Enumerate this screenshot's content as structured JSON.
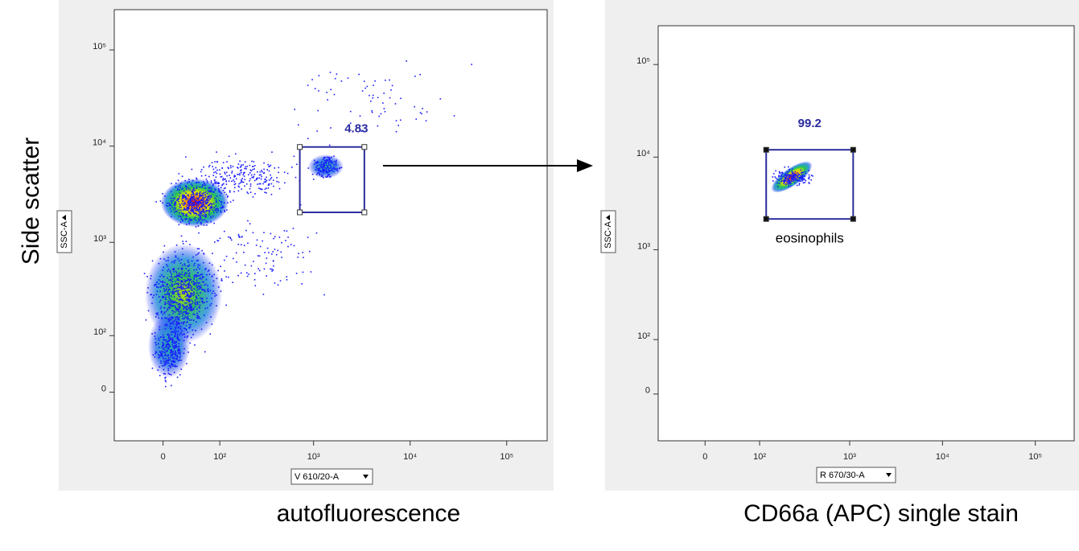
{
  "chart_data": [
    {
      "type": "scatter",
      "ylabel": "Side scatter",
      "xlabel": "autofluorescence",
      "channel_x": "V 610/20-A",
      "channel_y": "SSC-A",
      "xlim": [
        -80,
        262144
      ],
      "ylim": [
        -80,
        262144
      ],
      "xticks": [
        0,
        {
          "value": 100,
          "label": "10²"
        },
        {
          "value": 1000,
          "label": "10³"
        },
        {
          "value": 10000,
          "label": "10⁴"
        },
        {
          "value": 100000,
          "label": "10⁵"
        }
      ],
      "yticks": [
        0,
        {
          "value": 100,
          "label": "10²"
        },
        {
          "value": 1000,
          "label": "10³"
        },
        {
          "value": 10000,
          "label": "10⁴"
        },
        {
          "value": 100000,
          "label": "10⁵"
        }
      ],
      "gates": [
        {
          "x": [
            720,
            3360
          ],
          "y": [
            2050,
            9800
          ],
          "percent": 4.83
        }
      ]
    },
    {
      "type": "scatter",
      "xlabel": "CD66a (APC) single stain",
      "channel_x": "R 670/30-A",
      "channel_y": "SSC-A",
      "xlim": [
        -80,
        262144
      ],
      "ylim": [
        -80,
        262144
      ],
      "xticks": [
        0,
        {
          "value": 100,
          "label": "10²"
        },
        {
          "value": 1000,
          "label": "10³"
        },
        {
          "value": 10000,
          "label": "10⁴"
        },
        {
          "value": 100000,
          "label": "10⁵"
        }
      ],
      "yticks": [
        0,
        {
          "value": 100,
          "label": "10²"
        },
        {
          "value": 1000,
          "label": "10³"
        },
        {
          "value": 10000,
          "label": "10⁴"
        },
        {
          "value": 100000,
          "label": "10⁵"
        }
      ],
      "gates": [
        {
          "x": [
            120,
            1090
          ],
          "y": [
            2150,
            12000
          ],
          "percent": 99.2,
          "name": "eosinophils"
        }
      ]
    }
  ]
}
